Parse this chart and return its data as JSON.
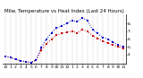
{
  "title": "Milw. Temperature vs Heat Index (Last 24 Hours)",
  "line1_color": "#cc0000",
  "line2_color": "#0000cc",
  "background_color": "#ffffff",
  "grid_color": "#888888",
  "x_values": [
    0,
    1,
    2,
    3,
    4,
    5,
    6,
    7,
    8,
    9,
    10,
    11,
    12,
    13,
    14,
    15,
    16,
    17,
    18,
    19,
    20,
    21,
    22,
    23
  ],
  "temp_values": [
    38,
    36,
    34,
    32,
    31,
    30,
    33,
    46,
    54,
    60,
    65,
    67,
    69,
    70,
    68,
    72,
    70,
    64,
    61,
    57,
    55,
    52,
    50,
    48
  ],
  "heat_values": [
    38,
    36,
    34,
    32,
    31,
    30,
    33,
    49,
    60,
    68,
    74,
    77,
    80,
    84,
    82,
    87,
    84,
    72,
    67,
    62,
    60,
    56,
    52,
    50
  ],
  "ylim": [
    28,
    92
  ],
  "yticks": [
    40,
    50,
    60,
    70,
    80
  ],
  "ytick_labels": [
    "4.",
    "5.",
    "6.",
    "7.",
    "8."
  ],
  "xtick_labels": [
    "12",
    "1",
    "2",
    "3",
    "4",
    "5",
    "6",
    "7",
    "8",
    "9",
    "10",
    "11",
    "12",
    "1",
    "2",
    "3",
    "4",
    "5",
    "6",
    "7",
    "8",
    "9",
    "10",
    "11"
  ],
  "marker_size": 1.8,
  "line_width": 0.7,
  "title_fontsize": 4.0,
  "tick_fontsize": 3.2,
  "fig_width": 1.6,
  "fig_height": 0.87,
  "dpi": 100
}
